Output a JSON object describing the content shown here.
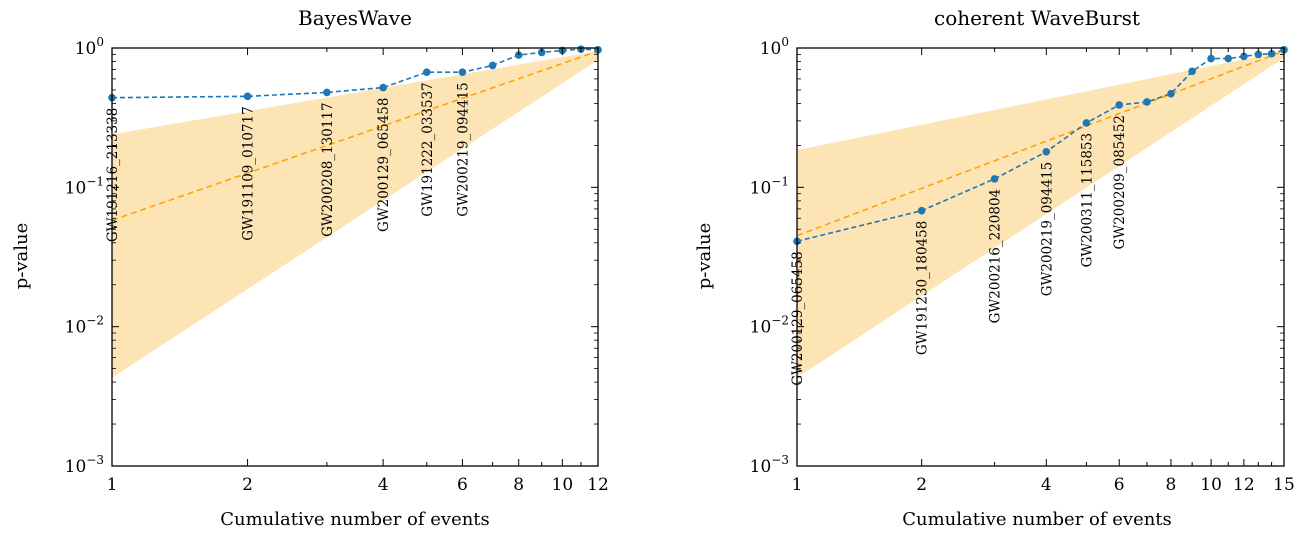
{
  "chart_data": [
    {
      "type": "line",
      "title": "BayesWave",
      "xlabel": "Cumulative number of events",
      "ylabel": "p-value",
      "xscale": "log",
      "yscale": "log",
      "xlim": [
        1,
        12
      ],
      "ylim": [
        0.001,
        1
      ],
      "xticks": [
        1,
        2,
        4,
        6,
        8,
        10,
        12
      ],
      "yticks": [
        {
          "value": 0.001,
          "base": "10",
          "exp": "−3"
        },
        {
          "value": 0.01,
          "base": "10",
          "exp": "−2"
        },
        {
          "value": 0.1,
          "base": "10",
          "exp": "−1"
        },
        {
          "value": 1,
          "base": "10",
          "exp": "0"
        }
      ],
      "colors": {
        "data": "#1f77b4",
        "expected": "#ffa500",
        "band": "#fde4b5"
      },
      "series": [
        {
          "kind": "observed",
          "x": [
            1,
            2,
            3,
            4,
            5,
            6,
            7,
            8,
            9,
            10,
            11,
            12
          ],
          "values": [
            0.44,
            0.45,
            0.48,
            0.52,
            0.67,
            0.67,
            0.75,
            0.89,
            0.93,
            0.96,
            0.98,
            0.97
          ]
        },
        {
          "kind": "expected",
          "x": [
            1,
            12
          ],
          "values": [
            0.058,
            0.95
          ]
        },
        {
          "kind": "band",
          "x": [
            1,
            12
          ],
          "upper": [
            0.24,
            0.95
          ],
          "lower": [
            0.0043,
            0.82
          ]
        }
      ],
      "annotations": [
        {
          "text": "GW191216_213338",
          "x": 1
        },
        {
          "text": "GW191109_010717",
          "x": 2
        },
        {
          "text": "GW200208_130117",
          "x": 3
        },
        {
          "text": "GW200129_065458",
          "x": 4
        },
        {
          "text": "GW191222_033537",
          "x": 5
        },
        {
          "text": "GW200219_094415",
          "x": 6
        }
      ]
    },
    {
      "type": "line",
      "title": "coherent WaveBurst",
      "xlabel": "Cumulative number of events",
      "ylabel": "p-value",
      "xscale": "log",
      "yscale": "log",
      "xlim": [
        1,
        15
      ],
      "ylim": [
        0.001,
        1
      ],
      "xticks": [
        1,
        2,
        4,
        6,
        8,
        10,
        12,
        15
      ],
      "yticks": [
        {
          "value": 0.001,
          "base": "10",
          "exp": "−3"
        },
        {
          "value": 0.01,
          "base": "10",
          "exp": "−2"
        },
        {
          "value": 0.1,
          "base": "10",
          "exp": "−1"
        },
        {
          "value": 1,
          "base": "10",
          "exp": "0"
        }
      ],
      "colors": {
        "data": "#1f77b4",
        "expected": "#ffa500",
        "band": "#fde4b5"
      },
      "series": [
        {
          "kind": "observed",
          "x": [
            1,
            2,
            3,
            4,
            5,
            6,
            7,
            8,
            9,
            10,
            11,
            12,
            13,
            14,
            15
          ],
          "values": [
            0.041,
            0.068,
            0.115,
            0.18,
            0.29,
            0.39,
            0.41,
            0.47,
            0.68,
            0.84,
            0.84,
            0.87,
            0.9,
            0.91,
            0.97
          ]
        },
        {
          "kind": "expected",
          "x": [
            1,
            15
          ],
          "values": [
            0.045,
            0.95
          ]
        },
        {
          "kind": "band",
          "x": [
            1,
            15
          ],
          "upper": [
            0.185,
            0.95
          ],
          "lower": [
            0.0043,
            0.85
          ]
        }
      ],
      "annotations": [
        {
          "text": "GW200129_065458",
          "x": 1
        },
        {
          "text": "GW191230_180458",
          "x": 2
        },
        {
          "text": "GW200216_220804",
          "x": 3
        },
        {
          "text": "GW200219_094415",
          "x": 4
        },
        {
          "text": "GW200311_115853",
          "x": 5
        },
        {
          "text": "GW200209_085452",
          "x": 6
        }
      ]
    }
  ]
}
